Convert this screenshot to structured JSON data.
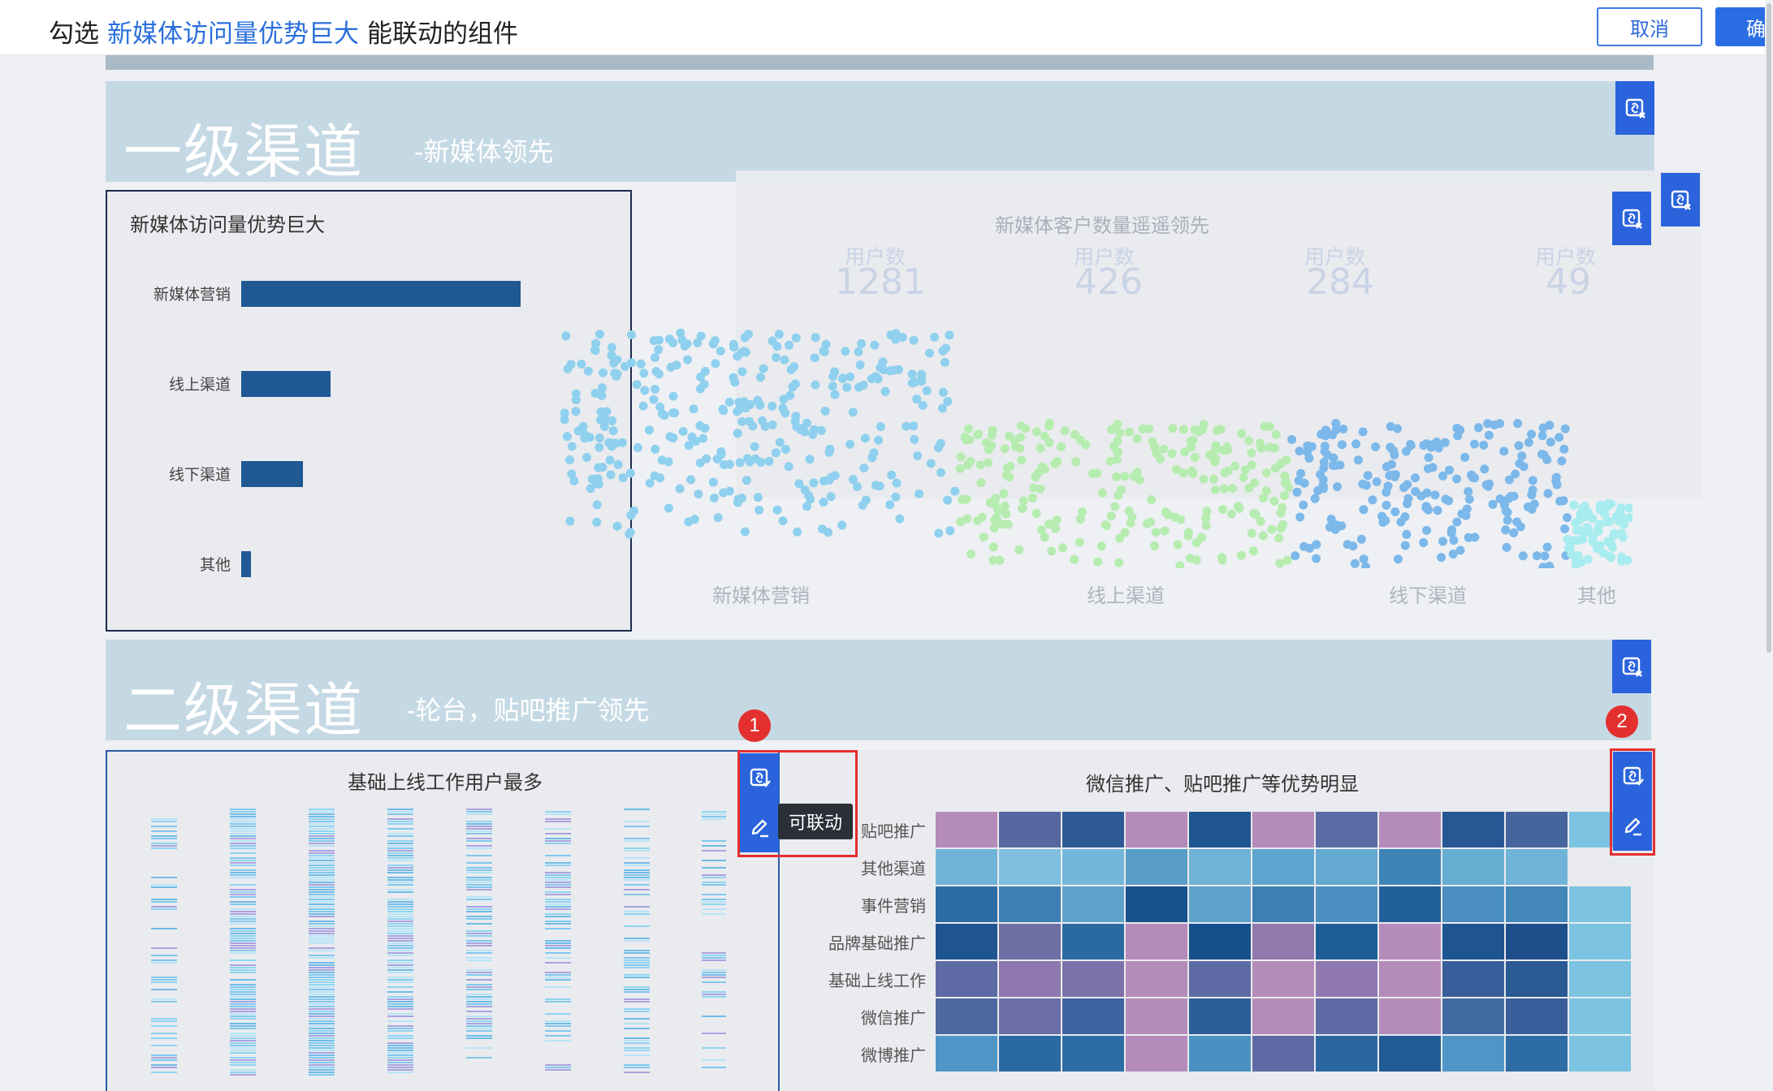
{
  "topbar": {
    "prefix": "勾选",
    "highlight": "新媒体访问量优势巨大",
    "suffix": "能联动的组件",
    "cancel_label": "取消",
    "ok_label": "确定"
  },
  "section1": {
    "title": "一级渠道",
    "subtitle": "-新媒体领先"
  },
  "section2": {
    "title": "二级渠道",
    "subtitle": "-轮台，贴吧推广领先"
  },
  "bar_panel": {
    "title": "新媒体访问量优势巨大",
    "items": [
      {
        "label": "新媒体营销",
        "value": 1.0
      },
      {
        "label": "线上渠道",
        "value": 0.32
      },
      {
        "label": "线下渠道",
        "value": 0.22
      },
      {
        "label": "其他",
        "value": 0.035
      }
    ],
    "bar_color": "#1f5892"
  },
  "scatter_panel": {
    "title": "新媒体客户数量遥遥领先",
    "kpis": [
      {
        "label": "用户数",
        "value": "1281"
      },
      {
        "label": "用户数",
        "value": "426"
      },
      {
        "label": "用户数",
        "value": "284"
      },
      {
        "label": "用户数",
        "value": "49"
      }
    ],
    "categories": [
      "新媒体营销",
      "线上渠道",
      "线下渠道",
      "其他"
    ],
    "colors": [
      "#8fd0ee",
      "#b6ecb0",
      "#7cb8ea",
      "#a8ecef"
    ]
  },
  "strips_panel": {
    "title": "基础上线工作用户最多",
    "tooltip": "可联动"
  },
  "heat_panel": {
    "title": "微信推广、贴吧推广等优势明显",
    "rows": [
      "贴吧推广",
      "其他渠道",
      "事件营销",
      "品牌基础推广",
      "基础上线工作",
      "微信推广",
      "微博推广"
    ]
  },
  "badges": {
    "one": "1",
    "two": "2"
  },
  "icons": {
    "link_edit": "link-edit-icon",
    "pencil": "pencil-icon"
  },
  "colors": {
    "accent": "#2a63dc",
    "highlight_box": "#e42f2f",
    "header_band": "#c5d9e4"
  }
}
